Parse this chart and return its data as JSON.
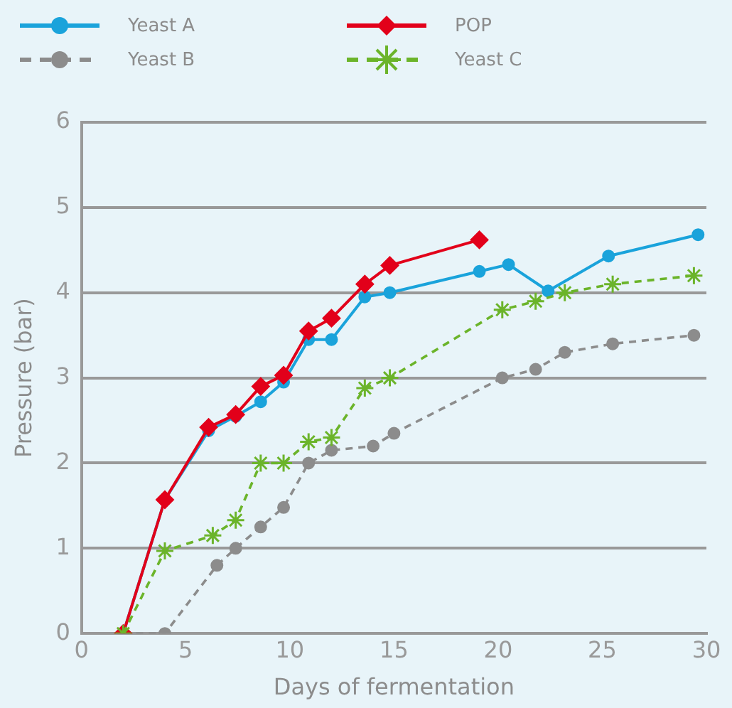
{
  "chart_data": {
    "type": "line",
    "xlabel": "Days of fermentation",
    "ylabel": "Pressure (bar)",
    "xlim": [
      0,
      30
    ],
    "xticks": [
      0,
      5,
      10,
      15,
      20,
      25,
      30
    ],
    "ylim": [
      0,
      6
    ],
    "yticks": [
      0,
      1,
      2,
      3,
      4,
      5,
      6
    ],
    "grid": "y",
    "legend": "top left",
    "series": [
      {
        "name": "Yeast A",
        "color": "#1aa3db",
        "marker": "circle",
        "line_style": "solid",
        "x": [
          2,
          4,
          6.1,
          7.4,
          8.6,
          9.7,
          10.9,
          12,
          13.6,
          14.8,
          19.1,
          20.5,
          22.4,
          25.3,
          29.6
        ],
        "values": [
          0,
          1.57,
          2.38,
          2.55,
          2.72,
          2.95,
          3.45,
          3.45,
          3.95,
          4.0,
          4.25,
          4.33,
          4.02,
          4.43,
          4.68
        ]
      },
      {
        "name": "Yeast B",
        "color": "#8c8c8c",
        "marker": "circle",
        "line_style": "dashed",
        "x": [
          2,
          4,
          6.5,
          7.4,
          8.6,
          9.7,
          10.9,
          12,
          14,
          15,
          20.2,
          21.8,
          23.2,
          25.5,
          29.4
        ],
        "values": [
          0,
          0,
          0.8,
          1.0,
          1.25,
          1.48,
          2.0,
          2.15,
          2.2,
          2.35,
          3.0,
          3.1,
          3.3,
          3.4,
          3.5
        ]
      },
      {
        "name": "POP",
        "color": "#e2001a",
        "marker": "diamond",
        "line_style": "solid",
        "x": [
          2,
          4,
          6.1,
          7.4,
          8.6,
          9.7,
          10.9,
          12,
          13.6,
          14.8,
          19.1
        ],
        "values": [
          0,
          1.57,
          2.42,
          2.57,
          2.9,
          3.03,
          3.55,
          3.7,
          4.1,
          4.32,
          4.62
        ]
      },
      {
        "name": "Yeast C",
        "color": "#6bb42a",
        "marker": "cross",
        "line_style": "dashed",
        "x": [
          2,
          4,
          6.3,
          7.4,
          8.6,
          9.7,
          10.9,
          12,
          13.6,
          14.8,
          20.2,
          21.8,
          23.2,
          25.5,
          29.4
        ],
        "values": [
          0,
          0.97,
          1.15,
          1.33,
          2.0,
          2.0,
          2.25,
          2.3,
          2.88,
          3.0,
          3.8,
          3.9,
          4.0,
          4.1,
          4.2
        ]
      }
    ]
  }
}
